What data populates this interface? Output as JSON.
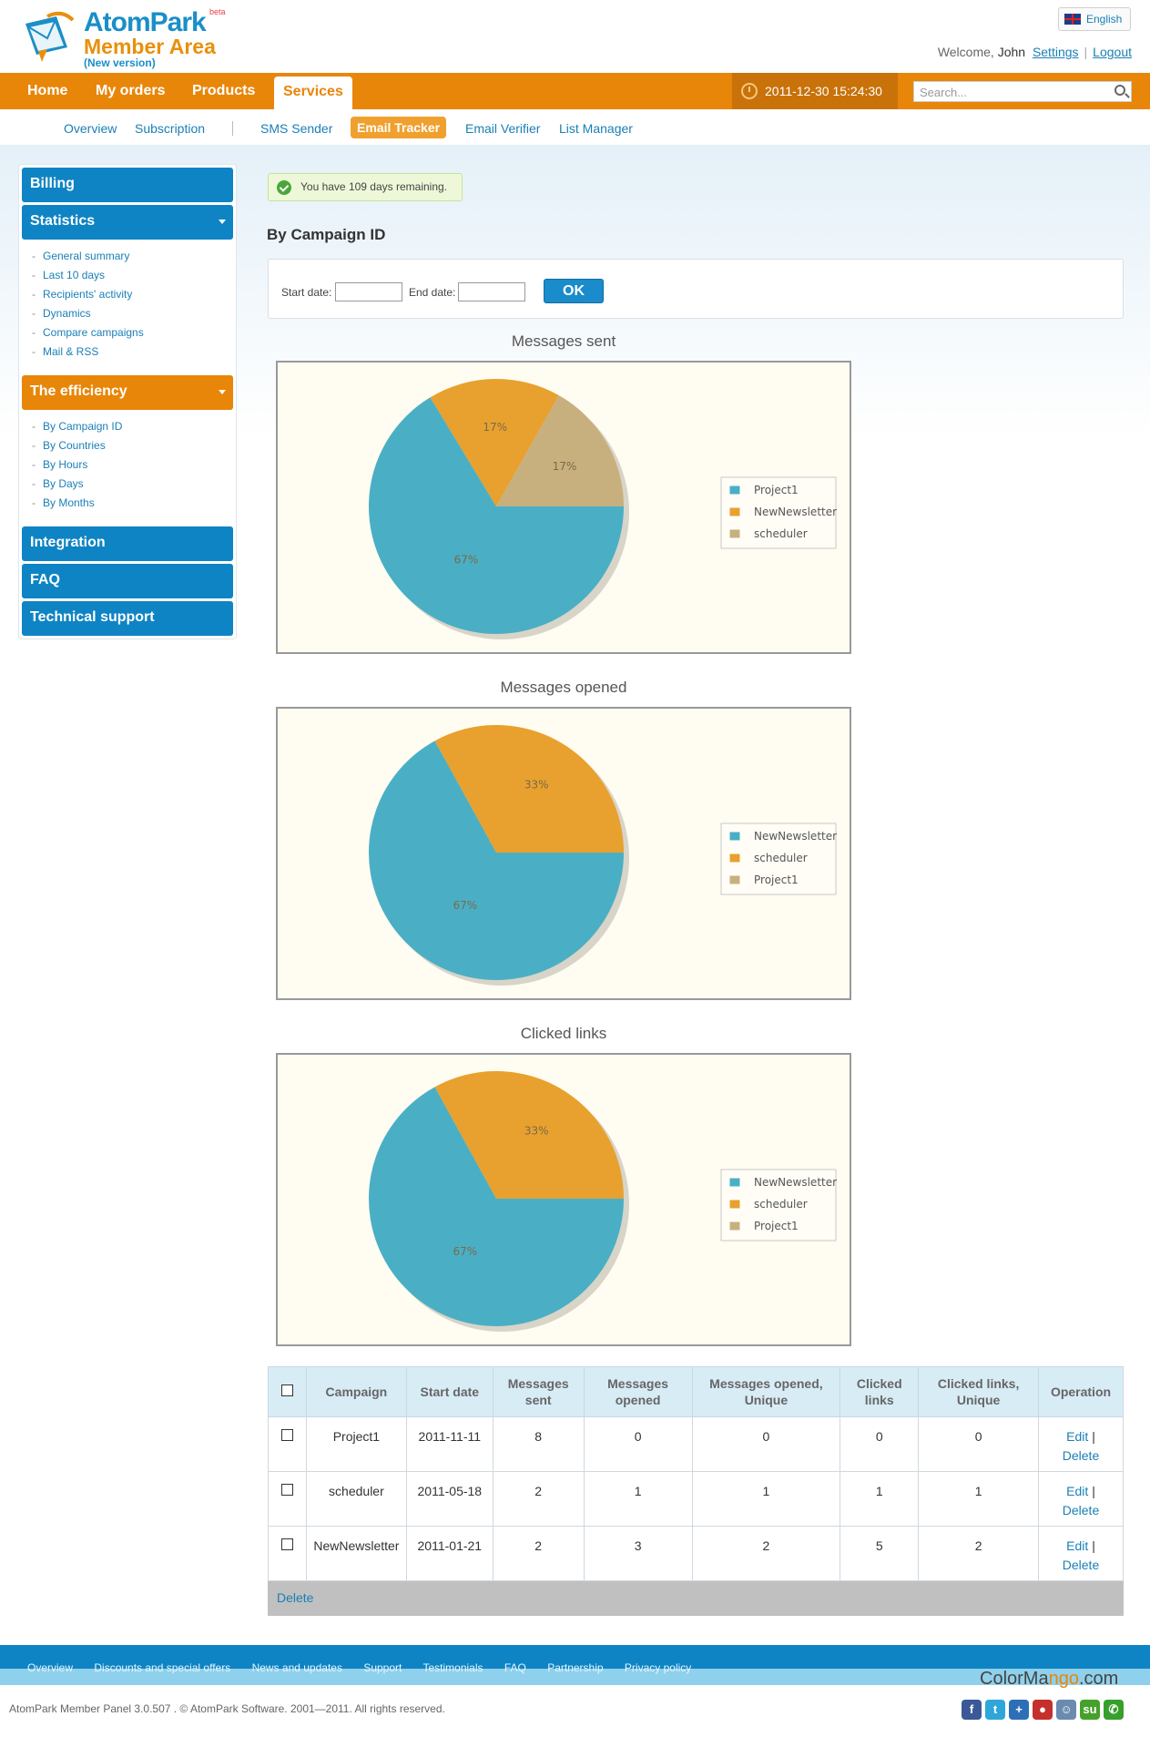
{
  "header": {
    "logo_line1": "AtomPark",
    "logo_line2": "Member Area",
    "logo_line3": "(New version)",
    "logo_beta": "beta",
    "language": "English",
    "welcome_text": "Welcome,",
    "user_name": "John",
    "settings_link": "Settings",
    "logout_link": "Logout"
  },
  "mainnav": {
    "items": [
      "Home",
      "My orders",
      "Products",
      "Services"
    ],
    "active": "Services",
    "datetime": "2011-12-30 15:24:30",
    "search_placeholder": "Search..."
  },
  "subnav": {
    "items": [
      "Overview",
      "Subscription",
      "SMS Sender",
      "Email Tracker",
      "Email Verifier",
      "List Manager"
    ],
    "active": "Email Tracker"
  },
  "sidebar": {
    "billing": "Billing",
    "statistics": "Statistics",
    "statistics_items": [
      "General summary",
      "Last 10 days",
      "Recipients' activity",
      "Dynamics",
      "Compare campaigns",
      "Mail & RSS"
    ],
    "efficiency": "The efficiency",
    "efficiency_items": [
      "By Campaign ID",
      "By Countries",
      "By Hours",
      "By Days",
      "By Months"
    ],
    "integration": "Integration",
    "faq": "FAQ",
    "support": "Technical support"
  },
  "notice": "You have 109 days remaining.",
  "page_title": "By Campaign ID",
  "filter": {
    "start_label": "Start date:",
    "end_label": "End date:",
    "start_value": "",
    "end_value": "",
    "ok_label": "OK"
  },
  "colors": {
    "blue": "#4aafc5",
    "orange": "#e8a12e",
    "tan": "#c8b07e"
  },
  "chart_data": [
    {
      "type": "pie",
      "title": "Messages sent",
      "labels": [
        "Project1",
        "NewNewsletter",
        "scheduler"
      ],
      "values": [
        67,
        17,
        17
      ],
      "colors": [
        "#4aafc5",
        "#e8a12e",
        "#c8b07e"
      ],
      "slice_labels": [
        "67%",
        "17%",
        "17%"
      ],
      "legend_placement": "right"
    },
    {
      "type": "pie",
      "title": "Messages opened",
      "labels": [
        "NewNewsletter",
        "scheduler",
        "Project1"
      ],
      "values": [
        67,
        33,
        0
      ],
      "colors": [
        "#4aafc5",
        "#e8a12e",
        "#c8b07e"
      ],
      "slice_labels": [
        "67%",
        "33%",
        ""
      ],
      "legend_placement": "right"
    },
    {
      "type": "pie",
      "title": "Clicked links",
      "labels": [
        "NewNewsletter",
        "scheduler",
        "Project1"
      ],
      "values": [
        67,
        33,
        0
      ],
      "colors": [
        "#4aafc5",
        "#e8a12e",
        "#c8b07e"
      ],
      "slice_labels": [
        "67%",
        "33%",
        ""
      ],
      "legend_placement": "right"
    }
  ],
  "table": {
    "headers": [
      "Campaign",
      "Start date",
      "Messages sent",
      "Messages opened",
      "Messages opened, Unique",
      "Clicked links",
      "Clicked links, Unique",
      "Operation"
    ],
    "header_lines": [
      [
        "Campaign"
      ],
      [
        "Start date"
      ],
      [
        "Messages",
        "sent"
      ],
      [
        "Messages",
        "opened"
      ],
      [
        "Messages opened,",
        "Unique"
      ],
      [
        "Clicked",
        "links"
      ],
      [
        "Clicked links,",
        "Unique"
      ],
      [
        "Operation"
      ]
    ],
    "rows": [
      [
        "Project1",
        "2011-11-11",
        "8",
        "0",
        "0",
        "0",
        "0"
      ],
      [
        "scheduler",
        "2011-05-18",
        "2",
        "1",
        "1",
        "1",
        "1"
      ],
      [
        "NewNewsletter",
        "2011-01-21",
        "2",
        "3",
        "2",
        "5",
        "2"
      ]
    ],
    "edit_label": "Edit",
    "op_separator": "|",
    "delete_label": "Delete",
    "footer_delete": "Delete"
  },
  "footer": {
    "links": [
      "Overview",
      "Discounts and special offers",
      "News and updates",
      "Support",
      "Testimonials",
      "FAQ",
      "Partnership",
      "Privacy policy"
    ],
    "copyright": "AtomPark Member Panel 3.0.507 . © AtomPark Software. 2001—2011. All rights reserved.",
    "brand_a": "ColorMa",
    "brand_b": "ngo",
    "brand_c": ".com",
    "social": [
      {
        "icon": "facebook-icon",
        "glyph": "f",
        "color": "#3b5998"
      },
      {
        "icon": "twitter-icon",
        "glyph": "t",
        "color": "#2fa6d9"
      },
      {
        "icon": "delicious-icon",
        "glyph": "+",
        "color": "#2d6fb6"
      },
      {
        "icon": "youtube-icon",
        "glyph": "●",
        "color": "#c4302b"
      },
      {
        "icon": "reddit-icon",
        "glyph": "☺",
        "color": "#6a8ab0"
      },
      {
        "icon": "stumbleupon-icon",
        "glyph": "su",
        "color": "#46a12b"
      },
      {
        "icon": "chat-icon",
        "glyph": "✆",
        "color": "#37a02c"
      }
    ]
  }
}
